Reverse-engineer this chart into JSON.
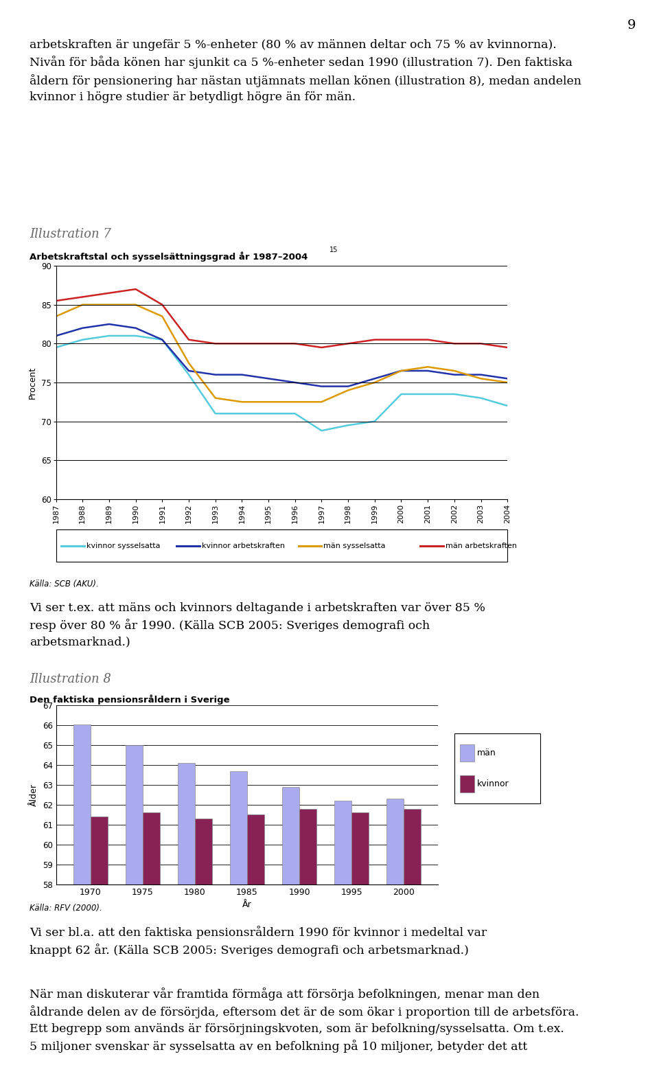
{
  "page_number": "9",
  "text_top": "arbetskraften är ungefär 5 %-enheter (80 % av männen deltar och 75 % av kvinnorna).\nNivån för båda könen har sjunkit ca 5 %-enheter sedan 1990 (illustration 7). Den faktiska\nåldern för pensionering har nästan utjämnats mellan könen (illustration 8), medan andelen\nkvinnor i högre studier är betydligt högre än för män.",
  "ill7_title_italic": "Illustration 7",
  "ill7_subtitle": "Arbetskraftstal och sysselsättningsgrad år 1987–2004",
  "ill7_superscript": "15",
  "ill7_ylabel": "Procent",
  "ill7_ylim": [
    60,
    90
  ],
  "ill7_yticks": [
    60,
    65,
    70,
    75,
    80,
    85,
    90
  ],
  "ill7_years": [
    1987,
    1988,
    1989,
    1990,
    1991,
    1992,
    1993,
    1994,
    1995,
    1996,
    1997,
    1998,
    1999,
    2000,
    2001,
    2002,
    2003,
    2004
  ],
  "ill7_kvinnor_sysselsatta": [
    79.5,
    80.5,
    81.0,
    81.0,
    80.5,
    76.0,
    71.0,
    71.0,
    71.0,
    71.0,
    68.8,
    69.5,
    70.0,
    73.5,
    73.5,
    73.5,
    73.0,
    72.0
  ],
  "ill7_kvinnor_arbetskraften": [
    81.0,
    82.0,
    82.5,
    82.0,
    80.5,
    76.5,
    76.0,
    76.0,
    75.5,
    75.0,
    74.5,
    74.5,
    75.5,
    76.5,
    76.5,
    76.0,
    76.0,
    75.5
  ],
  "ill7_man_sysselsatta": [
    83.5,
    85.0,
    85.0,
    85.0,
    83.5,
    77.5,
    73.0,
    72.5,
    72.5,
    72.5,
    72.5,
    74.0,
    75.0,
    76.5,
    77.0,
    76.5,
    75.5,
    75.0
  ],
  "ill7_man_arbetskraften": [
    85.5,
    86.0,
    86.5,
    87.0,
    85.0,
    80.5,
    80.0,
    80.0,
    80.0,
    80.0,
    79.5,
    80.0,
    80.5,
    80.5,
    80.5,
    80.0,
    80.0,
    79.5
  ],
  "ill7_color_ks": "#55ccdd",
  "ill7_color_ka": "#2233aa",
  "ill7_color_ms": "#dd9900",
  "ill7_color_ma": "#cc2222",
  "ill7_legend": [
    "kvinnor sysselsatta",
    "kvinnor arbetskraften",
    "män sysselsatta",
    "män arbetskraften"
  ],
  "ill7_source": "Källa: SCB (AKU).",
  "text_mid": "Vi ser t.ex. att mäns och kvinnors deltagande i arbetskraften var över 85 %\nresp över 80 % år 1990. (Källa SCB 2005: Sveriges demografi och\narbetsmarknad.)",
  "ill8_title_italic": "Illustration 8",
  "ill8_subtitle": "Den faktiska pensionsråldern i Sverige",
  "ill8_ylabel": "Ålder",
  "ill8_xlabel": "År",
  "ill8_ylim": [
    58,
    67
  ],
  "ill8_yticks": [
    58,
    59,
    60,
    61,
    62,
    63,
    64,
    65,
    66,
    67
  ],
  "ill8_years": [
    1970,
    1975,
    1980,
    1985,
    1990,
    1995,
    2000
  ],
  "ill8_man": [
    66.05,
    65.0,
    64.1,
    63.7,
    62.9,
    62.2,
    62.3
  ],
  "ill8_kvinnor": [
    61.4,
    61.6,
    61.3,
    61.5,
    61.8,
    61.6,
    61.8
  ],
  "ill8_color_man": "#aaaaee",
  "ill8_color_kvinnor": "#882255",
  "ill8_legend_man": "män",
  "ill8_legend_kvinnor": "kvinnor",
  "ill8_source": "Källa: RFV (2000).",
  "text_bottom": "Vi ser bl.a. att den faktiska pensionsråldern 1990 för kvinnor i medeltal var\nknappt 62 år. (Källa SCB 2005: Sveriges demografi och arbetsmarknad.)",
  "text_final": "När man diskuterar vår framtida förmåga att försörja befolkningen, menar man den\nåldrande delen av de försörjda, eftersom det är de som ökar i proportion till de arbetsföra.\nEtt begrepp som används är försörjningskvoten, som är befolkning/sysselsatta. Om t.ex.\n5 miljoner svenskar är sysselsatta av en befolkning på 10 miljoner, betyder det att",
  "background_color": "#ffffff"
}
